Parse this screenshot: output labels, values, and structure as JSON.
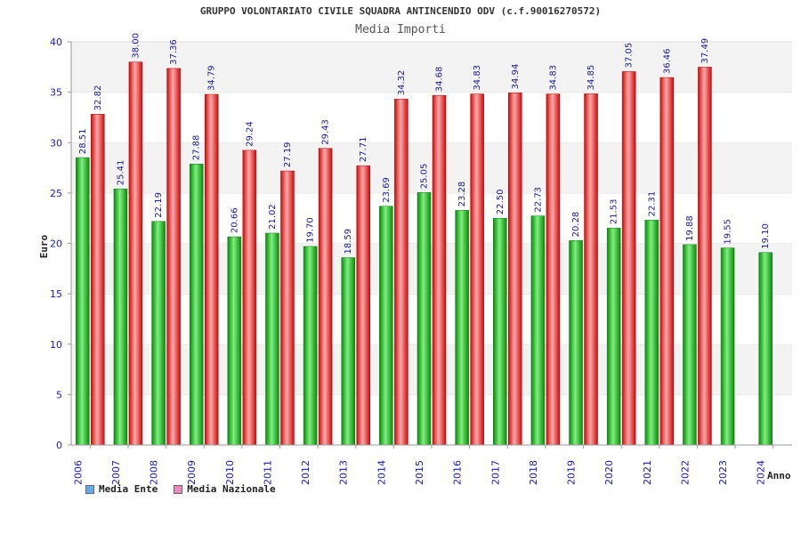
{
  "chart_data": {
    "type": "bar",
    "title": "GRUPPO VOLONTARIATO CIVILE SQUADRA ANTINCENDIO ODV (c.f.90016270572)",
    "subtitle": "Media Importi",
    "xlabel": "Anno",
    "ylabel": "Euro",
    "ylim": [
      0,
      40
    ],
    "yticks": [
      "0",
      "5",
      "10",
      "15",
      "20",
      "25",
      "30",
      "35",
      "40"
    ],
    "categories": [
      "2006",
      "2007",
      "2008",
      "2009",
      "2010",
      "2011",
      "2012",
      "2013",
      "2014",
      "2015",
      "2016",
      "2017",
      "2018",
      "2019",
      "2020",
      "2021",
      "2022",
      "2023",
      "2024"
    ],
    "series": [
      {
        "name": "Media Ente",
        "color": "#22bb22",
        "values": [
          28.51,
          25.41,
          22.19,
          27.88,
          20.66,
          21.02,
          19.7,
          18.59,
          23.69,
          25.05,
          23.28,
          22.5,
          22.73,
          20.28,
          21.53,
          22.31,
          19.88,
          19.55,
          19.1
        ],
        "labels": [
          "28.51",
          "25.41",
          "22.19",
          "27.88",
          "20.66",
          "21.02",
          "19.70",
          "18.59",
          "23.69",
          "25.05",
          "23.28",
          "22.50",
          "22.73",
          "20.28",
          "21.53",
          "22.31",
          "19.88",
          "19.55",
          "19.10"
        ]
      },
      {
        "name": "Media Nazionale",
        "color": "#ee2222",
        "values": [
          32.82,
          38.0,
          37.36,
          34.79,
          29.24,
          27.19,
          29.43,
          27.71,
          34.32,
          34.68,
          34.83,
          34.94,
          34.83,
          34.85,
          37.05,
          36.46,
          37.49,
          null,
          null
        ],
        "labels": [
          "32.82",
          "38.00",
          "37.36",
          "34.79",
          "29.24",
          "27.19",
          "29.43",
          "27.71",
          "34.32",
          "34.68",
          "34.83",
          "34.94",
          "34.83",
          "34.85",
          "37.05",
          "36.46",
          "37.49",
          "",
          ""
        ]
      }
    ],
    "legend": [
      {
        "name": "Media Ente",
        "color": "#66aaee"
      },
      {
        "name": "Media Nazionale",
        "color": "#ee88bb"
      }
    ],
    "legend_position": "bottom-left",
    "grid": true
  }
}
